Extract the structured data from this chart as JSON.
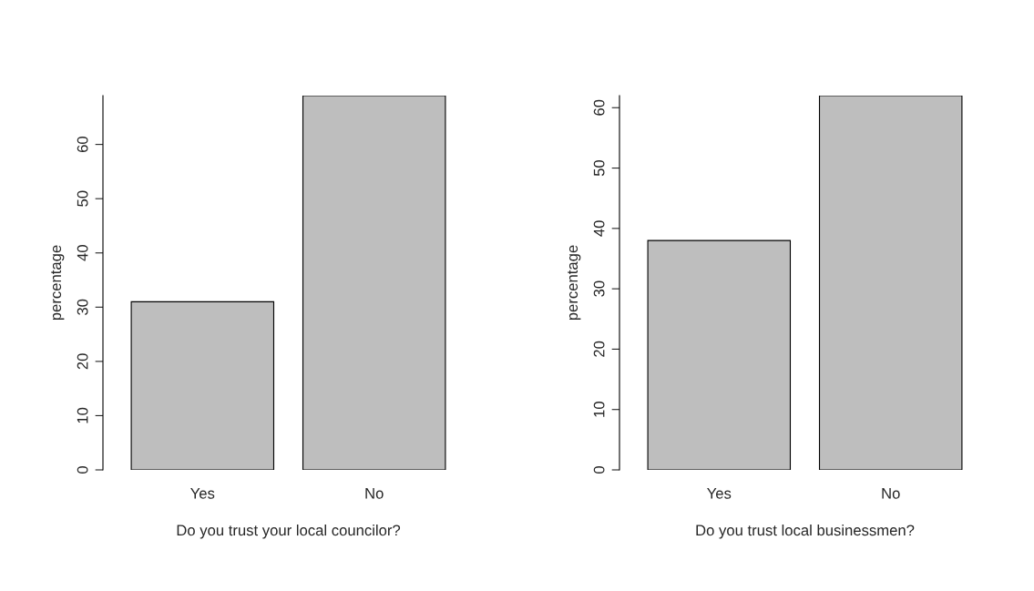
{
  "chart_data": [
    {
      "type": "bar",
      "categories": [
        "Yes",
        "No"
      ],
      "values": [
        31,
        69
      ],
      "color": "#bebebe",
      "xlabel": "Do you trust your local councilor?",
      "ylabel": "percentage",
      "ylim": [
        0,
        69
      ],
      "yticks": [
        0,
        10,
        20,
        30,
        40,
        50,
        60
      ],
      "grid": false,
      "legend": false
    },
    {
      "type": "bar",
      "categories": [
        "Yes",
        "No"
      ],
      "values": [
        38,
        62
      ],
      "color": "#bebebe",
      "xlabel": "Do you trust local businessmen?",
      "ylabel": "percentage",
      "ylim": [
        0,
        62
      ],
      "yticks": [
        0,
        10,
        20,
        30,
        40,
        50,
        60
      ],
      "grid": false,
      "legend": false
    }
  ]
}
